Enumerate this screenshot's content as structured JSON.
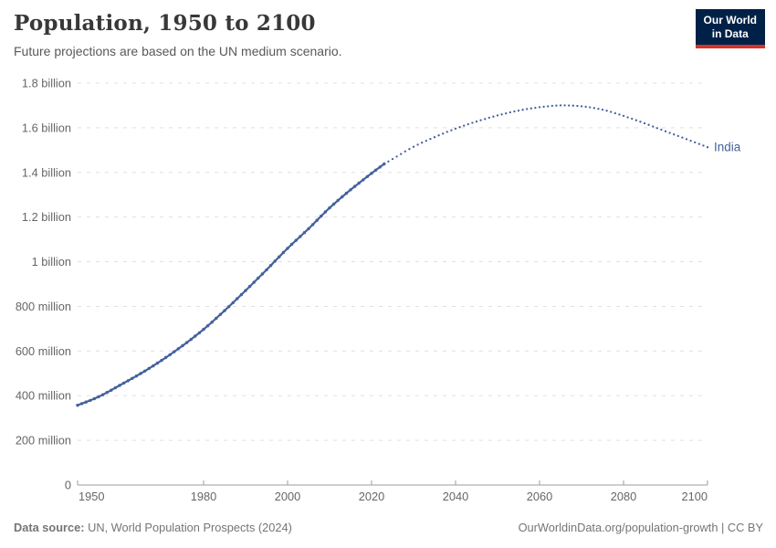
{
  "header": {
    "title": "Population, 1950 to 2100",
    "subtitle": "Future projections are based on the UN medium scenario.",
    "logo": {
      "line1": "Our World",
      "line2": "in Data"
    }
  },
  "chart_data": {
    "type": "line",
    "title": "Population, 1950 to 2100",
    "subtitle": "Future projections are based on the UN medium scenario.",
    "xlabel": "",
    "ylabel": "",
    "x_range": [
      1950,
      2100
    ],
    "y_range_millions": [
      0,
      1800
    ],
    "x_ticks": [
      1950,
      1980,
      2000,
      2020,
      2040,
      2060,
      2080,
      2100
    ],
    "y_ticks": [
      {
        "value": 0,
        "label": "0"
      },
      {
        "value": 200,
        "label": "200 million"
      },
      {
        "value": 400,
        "label": "400 million"
      },
      {
        "value": 600,
        "label": "600 million"
      },
      {
        "value": 800,
        "label": "800 million"
      },
      {
        "value": 1000,
        "label": "1 billion"
      },
      {
        "value": 1200,
        "label": "1.2 billion"
      },
      {
        "value": 1400,
        "label": "1.4 billion"
      },
      {
        "value": 1600,
        "label": "1.6 billion"
      },
      {
        "value": 1800,
        "label": "1.8 billion"
      }
    ],
    "grid": "dashed-horizontal",
    "legend": "inline-end-label",
    "series": [
      {
        "name": "India",
        "color": "#44619d",
        "observed": {
          "years": [
            1950,
            1955,
            1960,
            1965,
            1970,
            1975,
            1980,
            1985,
            1990,
            1995,
            2000,
            2005,
            2010,
            2015,
            2020,
            2023
          ],
          "values_millions": [
            357,
            395,
            446,
            499,
            558,
            624,
            697,
            781,
            871,
            964,
            1060,
            1148,
            1241,
            1322,
            1396,
            1438
          ]
        },
        "projection": {
          "years": [
            2023,
            2025,
            2030,
            2035,
            2040,
            2045,
            2050,
            2055,
            2060,
            2065,
            2070,
            2075,
            2080,
            2085,
            2090,
            2095,
            2100
          ],
          "values_millions": [
            1438,
            1460,
            1515,
            1558,
            1596,
            1628,
            1655,
            1677,
            1692,
            1700,
            1696,
            1681,
            1653,
            1620,
            1584,
            1549,
            1513
          ]
        }
      }
    ]
  },
  "colors": {
    "line": "#44619d",
    "grid": "#e0e0e0",
    "axis": "#9e9e9e",
    "tick_text": "#666666",
    "title": "#383838",
    "subtitle": "#595959",
    "footer": "#757575",
    "logo_bg": "#002147",
    "logo_red": "#d0342c"
  },
  "footer": {
    "data_source_label": "Data source:",
    "data_source_value": " UN, World Population Prospects (2024)",
    "credit": "OurWorldinData.org/population-growth | CC BY"
  }
}
